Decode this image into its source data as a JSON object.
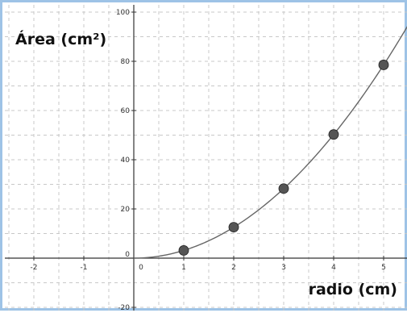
{
  "chart_data": {
    "type": "scatter",
    "ylabel": "Área (cm²)",
    "xlabel": "radio (cm)",
    "xlim": [
      -2.5,
      5.5
    ],
    "ylim": [
      -22,
      100
    ],
    "x_ticks": [
      -2,
      -1,
      0,
      1,
      2,
      3,
      4,
      5
    ],
    "y_ticks": [
      -20,
      0,
      20,
      40,
      60,
      80,
      100
    ],
    "grid": true,
    "series": [
      {
        "points": [
          {
            "x": 1,
            "y": 3.14
          },
          {
            "x": 2,
            "y": 12.57
          },
          {
            "x": 3,
            "y": 28.27
          },
          {
            "x": 4,
            "y": 50.27
          },
          {
            "x": 5,
            "y": 78.54
          }
        ],
        "color": "#555555"
      }
    ],
    "curve": {
      "formula": "y = πx²",
      "x_from": 0,
      "x_to": 5.6,
      "color": "#666666"
    }
  }
}
